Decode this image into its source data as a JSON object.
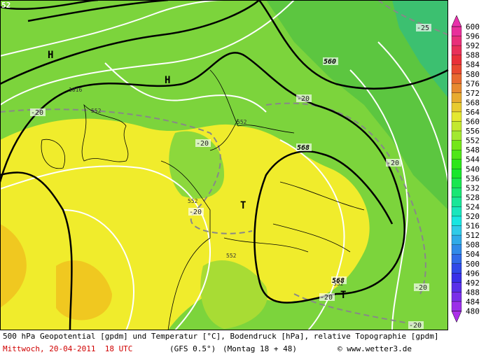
{
  "map": {
    "labels": [
      "52",
      "H",
      "H",
      "T",
      "T",
      "560",
      "568",
      "568",
      "1016",
      "552",
      "552",
      "552",
      "552",
      "552",
      "-20",
      "-20",
      "-20",
      "-20",
      "-20",
      "-20",
      "-20",
      "-20",
      "-25"
    ]
  },
  "colorbar": {
    "labels": [
      600,
      596,
      592,
      588,
      584,
      580,
      576,
      572,
      568,
      564,
      560,
      556,
      552,
      548,
      544,
      540,
      536,
      532,
      528,
      524,
      520,
      516,
      512,
      508,
      504,
      500,
      496,
      492,
      488,
      484,
      480
    ]
  },
  "footer": {
    "description": "500 hPa Geopotential [gpdm] und Temperatur [°C], Bodendruck [hPa], relative Topographie [gpdm]",
    "date": "Mittwoch, 20-04-2011  18 UTC",
    "model": "(GFS 0.5°)",
    "run": "(Montag 18 + 48)",
    "source": "© www.wetter3.de"
  }
}
